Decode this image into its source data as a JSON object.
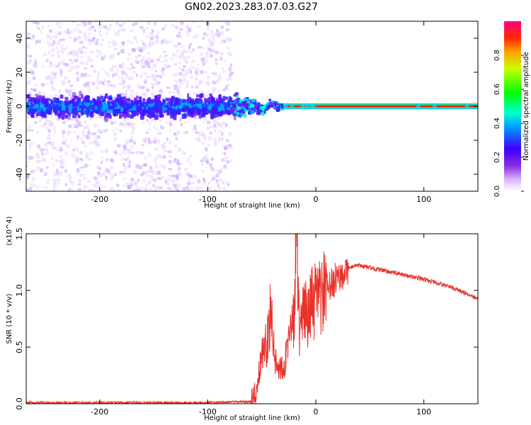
{
  "title": "GN02.2023.283.07.03.G27",
  "chart_data": [
    {
      "type": "heatmap",
      "xlabel": "Height of straight line (km)",
      "ylabel": "Frequency (Hz)",
      "xlim": [
        -268,
        150
      ],
      "ylim": [
        -50,
        50
      ],
      "xticks": [
        -200,
        -100,
        0,
        100
      ],
      "yticks": [
        -40,
        -20,
        0,
        20,
        40
      ],
      "colorbar": {
        "label": "Normalized spectral amplitude",
        "ticks": [
          "0.0",
          "0.2",
          "0.4",
          "0.6",
          "0.8"
        ],
        "tick_values": [
          0.0,
          0.2,
          0.4,
          0.6,
          0.8
        ],
        "range": [
          0,
          1
        ]
      },
      "features": [
        {
          "x_range": [
            -268,
            -78
          ],
          "description": "broadband scatter, dense near 0 Hz (±10 Hz)"
        },
        {
          "x_range": [
            -78,
            -30
          ],
          "description": "converging signal near 0 Hz"
        },
        {
          "x_range": [
            -30,
            150
          ],
          "description": "strong narrow line at 0 Hz"
        }
      ]
    },
    {
      "type": "line",
      "xlabel": "Height of straight line (km)",
      "ylabel": "SNR (10 * v/v)",
      "y_multiplier": "(x10^4)",
      "xlim": [
        -268,
        150
      ],
      "ylim": [
        0,
        1.5
      ],
      "xticks": [
        -200,
        -100,
        0,
        100
      ],
      "yticks": [
        "0.0",
        "0.5",
        "1.0",
        "1.5"
      ],
      "tick_values": [
        0.0,
        0.5,
        1.0,
        1.5
      ],
      "series": [
        {
          "color": "#e8312a",
          "x": [
            -268,
            -100,
            -60,
            -55,
            -50,
            -45,
            -42,
            -40,
            -38,
            -35,
            -30,
            -25,
            -20,
            -18,
            -15,
            -10,
            -5,
            0,
            5,
            10,
            15,
            20,
            25,
            30,
            40,
            50,
            75,
            100,
            125,
            150
          ],
          "y": [
            0.01,
            0.01,
            0.02,
            0.1,
            0.45,
            0.55,
            0.85,
            0.6,
            0.4,
            0.3,
            0.35,
            0.5,
            0.8,
            1.5,
            0.65,
            0.8,
            0.85,
            0.9,
            0.95,
            1.0,
            1.05,
            1.12,
            1.15,
            1.2,
            1.22,
            1.2,
            1.15,
            1.1,
            1.03,
            0.93
          ]
        }
      ]
    }
  ]
}
